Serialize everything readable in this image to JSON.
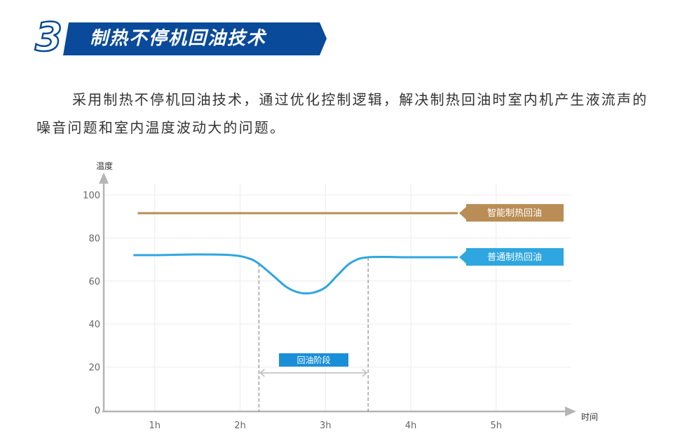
{
  "header": {
    "section_number": "3",
    "title": "制热不停机回油技术"
  },
  "intro": "采用制热不停机回油技术，通过优化控制逻辑，解决制热回油时室内机产生液流声的噪音问题和室内温度波动大的问题。",
  "chart_data": {
    "type": "line",
    "xlabel": "时间",
    "ylabel": "温度",
    "x_ticks": [
      "1h",
      "2h",
      "3h",
      "4h",
      "5h"
    ],
    "y_ticks": [
      "0",
      "20",
      "40",
      "60",
      "80",
      "100"
    ],
    "ylim": [
      0,
      100
    ],
    "grid": true,
    "series": [
      {
        "name": "智能制热回油",
        "color": "#b98d55",
        "x": [
          0.8,
          4.55
        ],
        "y": [
          91.5,
          91.5
        ]
      },
      {
        "name": "普通制热回油",
        "color": "#2ea6e0",
        "x": [
          0.75,
          1.0,
          1.5,
          1.9,
          2.1,
          2.22,
          2.4,
          2.55,
          2.7,
          2.85,
          3.0,
          3.15,
          3.3,
          3.5,
          4.0,
          4.55
        ],
        "y": [
          72,
          72,
          72.3,
          72,
          70.5,
          68,
          62,
          57,
          54.5,
          54.5,
          57,
          63,
          68.5,
          71,
          71,
          71
        ]
      }
    ],
    "annotation": {
      "label": "回油阶段",
      "x_start": 2.22,
      "x_end": 3.5,
      "color": "#1a8fd8"
    }
  }
}
